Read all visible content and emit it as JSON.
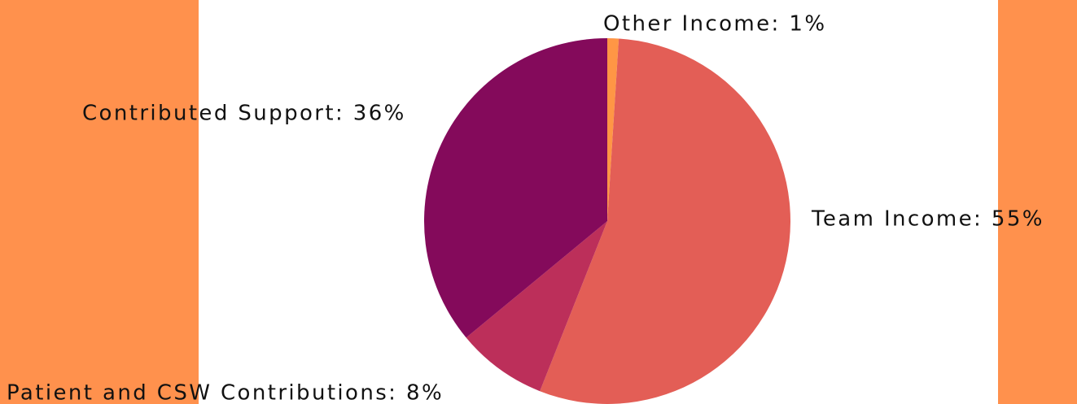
{
  "chart_data": {
    "type": "pie",
    "labels": [
      "Other Income: 1%",
      "Team Income: 55%",
      "Patient and CSW Contributions: 8%",
      "Contributed Support: 36%"
    ],
    "values": [
      1,
      55,
      8,
      36
    ],
    "colors": [
      "#ff9645",
      "#e35e56",
      "#bc2f5a",
      "#840a5b"
    ]
  }
}
